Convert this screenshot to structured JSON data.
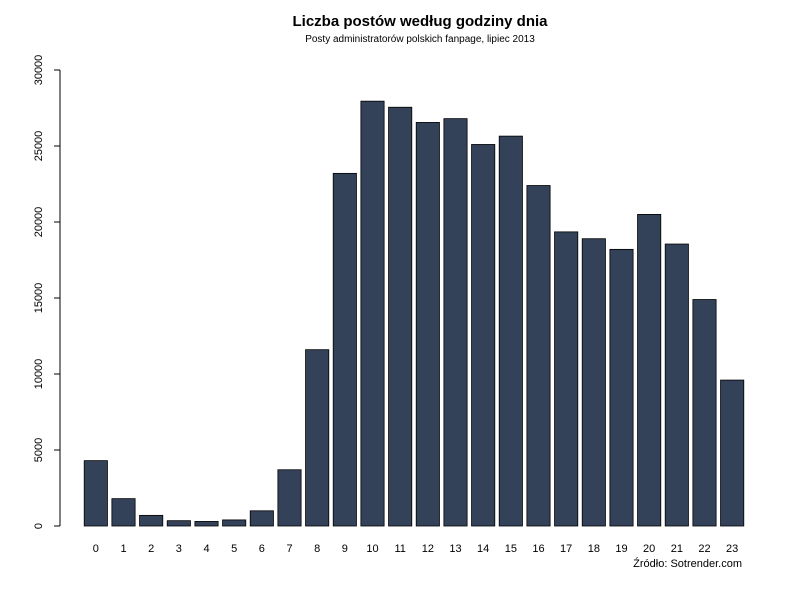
{
  "chart_data": {
    "type": "bar",
    "title": "Liczba postów według godziny dnia",
    "subtitle": "Posty administratorów polskich fanpage, lipiec 2013",
    "source": "Źródło: Sotrender.com",
    "xlabel": "",
    "ylabel": "",
    "categories": [
      "0",
      "1",
      "2",
      "3",
      "4",
      "5",
      "6",
      "7",
      "8",
      "9",
      "10",
      "11",
      "12",
      "13",
      "14",
      "15",
      "16",
      "17",
      "18",
      "19",
      "20",
      "21",
      "22",
      "23"
    ],
    "values": [
      4300,
      1800,
      700,
      350,
      300,
      400,
      1000,
      3700,
      11600,
      23200,
      27950,
      27550,
      26550,
      26800,
      25100,
      25650,
      22400,
      19350,
      18900,
      18200,
      20500,
      18550,
      14900,
      9600
    ],
    "ylim": [
      0,
      30000
    ],
    "yticks": [
      0,
      5000,
      10000,
      15000,
      20000,
      25000,
      30000
    ],
    "ytick_labels": [
      "0",
      "5000",
      "10000",
      "15000",
      "20000",
      "25000",
      "30000"
    ],
    "bar_color": "#344259",
    "grid": false,
    "legend": "none"
  }
}
